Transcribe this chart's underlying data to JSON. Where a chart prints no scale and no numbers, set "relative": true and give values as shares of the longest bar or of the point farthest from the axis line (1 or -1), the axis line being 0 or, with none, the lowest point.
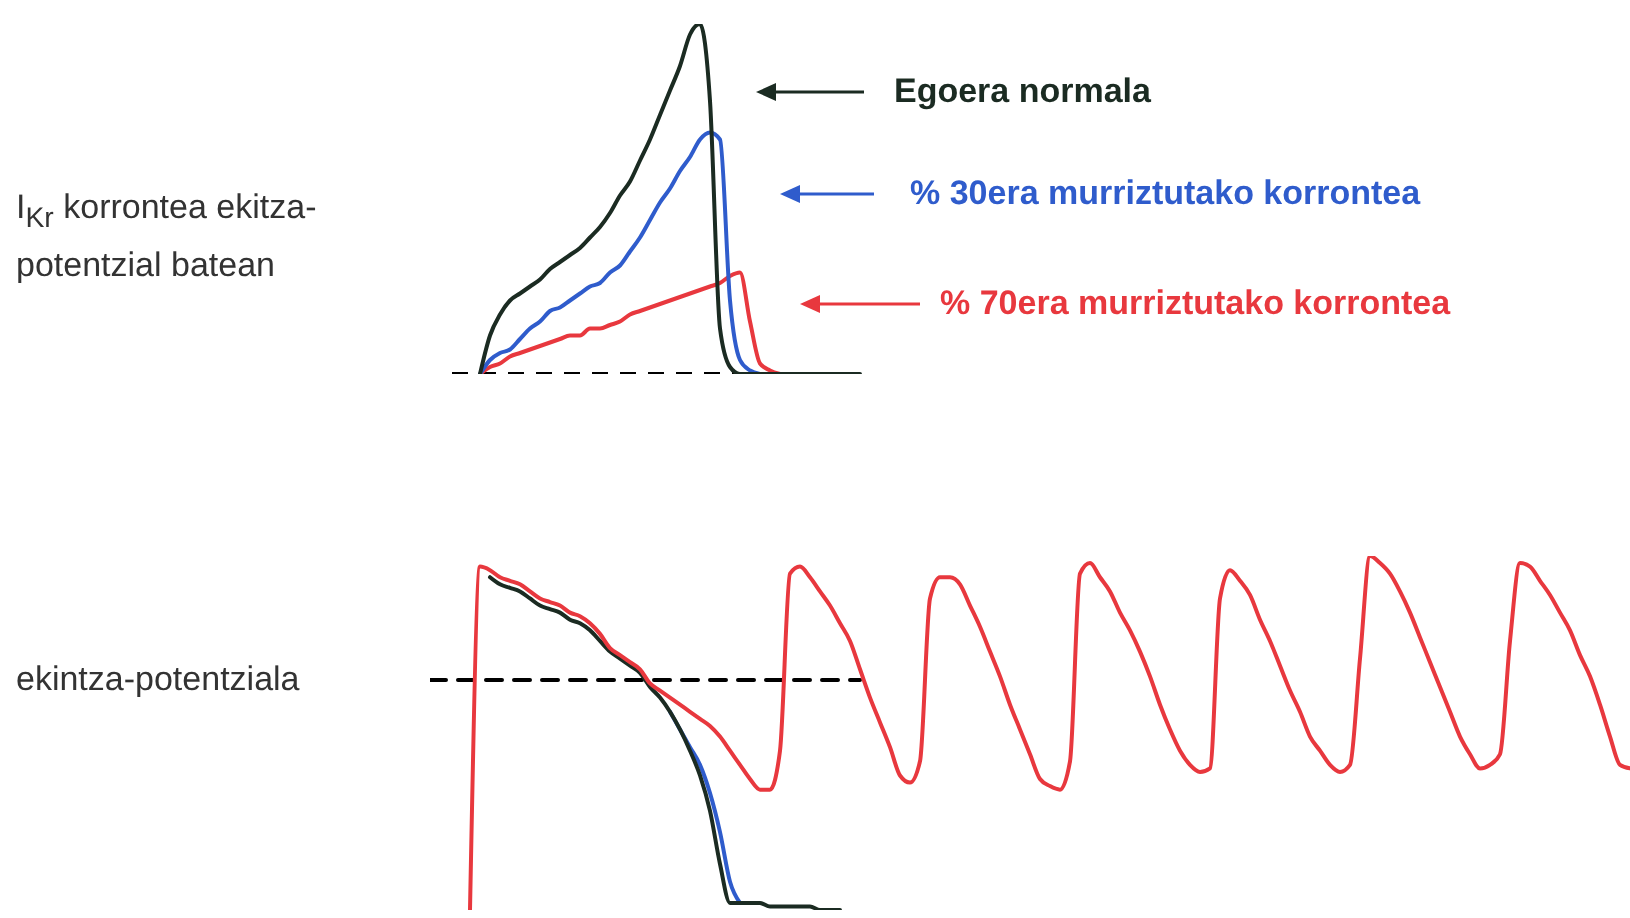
{
  "chart_data": [
    {
      "type": "line",
      "relative": true,
      "tick_labels": false,
      "legend": "right",
      "ylabel": "I$_{Kr}$ korrontea ekitza-potentzial batean",
      "categories": [
        null,
        null,
        null,
        null,
        null,
        null,
        null,
        null,
        null,
        null,
        null,
        null,
        null,
        null,
        null,
        null,
        null,
        null,
        null,
        null,
        null,
        null,
        null,
        null,
        null,
        null,
        null,
        null,
        null,
        null,
        null,
        null,
        null,
        null,
        null,
        null,
        null,
        null,
        null,
        null,
        null,
        null
      ],
      "ref_lines": [
        {
          "axis": "y",
          "value": 0,
          "color": "#000000",
          "line_style": "dashed"
        }
      ],
      "series": [
        {
          "name": "% 70era murriztutako korrontea",
          "color": "#e8383e",
          "values": [
            null,
            null,
            null,
            0,
            0.02,
            0.03,
            0.05,
            0.06,
            0.07,
            0.08,
            0.09,
            0.1,
            0.11,
            0.11,
            0.13,
            0.13,
            0.14,
            0.15,
            0.17,
            0.18,
            0.19,
            0.2,
            0.21,
            0.22,
            0.23,
            0.24,
            0.25,
            0.26,
            0.28,
            0.29,
            0.15,
            0.03,
            0.01,
            0,
            null,
            null,
            null,
            null,
            null,
            null,
            null,
            null
          ]
        },
        {
          "name": "% 30era murriztutako korrontea",
          "color": "#2f5ccc",
          "values": [
            null,
            null,
            null,
            0,
            0.04,
            0.06,
            0.07,
            0.1,
            0.13,
            0.15,
            0.18,
            0.19,
            0.21,
            0.23,
            0.25,
            0.26,
            0.29,
            0.31,
            0.35,
            0.39,
            0.44,
            0.49,
            0.53,
            0.58,
            0.62,
            0.67,
            0.69,
            0.67,
            0.21,
            0.04,
            0.01,
            0,
            null,
            null,
            null,
            null,
            null,
            null,
            null,
            null,
            null,
            null
          ]
        },
        {
          "name": "Egoera normala",
          "color": "#1b2b22",
          "values": [
            null,
            null,
            null,
            0,
            0.11,
            0.17,
            0.21,
            0.23,
            0.25,
            0.27,
            0.3,
            0.32,
            0.34,
            0.36,
            0.39,
            0.42,
            0.46,
            0.51,
            0.55,
            0.61,
            0.67,
            0.74,
            0.81,
            0.88,
            0.97,
            1.0,
            0.78,
            0.13,
            0.02,
            0,
            0,
            0,
            0,
            0,
            0,
            0,
            0,
            0,
            0,
            0,
            0,
            0
          ]
        }
      ]
    },
    {
      "type": "line",
      "relative": true,
      "tick_labels": false,
      "ylabel": "ekintza-potentziala",
      "categories": [
        null,
        null,
        null,
        null,
        null,
        null,
        null,
        null,
        null,
        null,
        null,
        null,
        null,
        null,
        null,
        null,
        null,
        null,
        null,
        null,
        null,
        null,
        null,
        null,
        null,
        null,
        null,
        null,
        null,
        null,
        null,
        null,
        null,
        null,
        null,
        null,
        null,
        null,
        null,
        null,
        null,
        null,
        null,
        null,
        null,
        null,
        null,
        null,
        null,
        null,
        null,
        null,
        null,
        null,
        null,
        null,
        null,
        null,
        null,
        null,
        null,
        null,
        null,
        null,
        null,
        null,
        null,
        null,
        null,
        null,
        null,
        null,
        null,
        null,
        null,
        null,
        null,
        null,
        null,
        null,
        null,
        null,
        null,
        null,
        null,
        null,
        null,
        null,
        null,
        null,
        null,
        null,
        null,
        null,
        null,
        null,
        null,
        null,
        null,
        null,
        null,
        null,
        null,
        null,
        null,
        null,
        null,
        null,
        null,
        null,
        null,
        null,
        null,
        null,
        null,
        null,
        null,
        null,
        null,
        null,
        null
      ],
      "series": [
        {
          "type": "line",
          "line_style": "dashed",
          "color": "#000000",
          "values": [
            0.65,
            0.65,
            0.65,
            0.65,
            0.65,
            0.65,
            0.65,
            0.65,
            0.65,
            0.65,
            0.65,
            0.65,
            0.65,
            0.65,
            0.65,
            0.65,
            0.65,
            0.65,
            0.65,
            0.65,
            0.65,
            0.65,
            0.65,
            0.65,
            0.65,
            0.65,
            0.65,
            0.65,
            0.65,
            0.65,
            0.65,
            0.65,
            0.65,
            0.65,
            0.65,
            0.65,
            0.65,
            0.65,
            0.65,
            0.65,
            0.65,
            0.65,
            0.65,
            0.65,
            null,
            null,
            null,
            null,
            null,
            null,
            null,
            null,
            null,
            null,
            null,
            null,
            null,
            null,
            null,
            null,
            null,
            null,
            null,
            null,
            null,
            null,
            null,
            null,
            null,
            null,
            null,
            null,
            null,
            null,
            null,
            null,
            null,
            null,
            null,
            null,
            null,
            null,
            null,
            null,
            null,
            null,
            null,
            null,
            null,
            null,
            null,
            null,
            null,
            null,
            null,
            null,
            null,
            null,
            null,
            null,
            null,
            null,
            null,
            null,
            null,
            null,
            null,
            null,
            null,
            null,
            null,
            null,
            null,
            null,
            null,
            null,
            null,
            null,
            null,
            null,
            null
          ]
        },
        {
          "color": "#2f5ccc",
          "values": [
            null,
            null,
            null,
            null,
            null,
            null,
            null,
            null,
            null,
            null,
            null,
            null,
            null,
            null,
            null,
            null,
            null,
            null,
            null,
            null,
            null,
            null,
            null,
            null,
            0.56,
            0.51,
            0.46,
            0.41,
            0.33,
            0.22,
            0.08,
            0.02,
            null,
            null,
            null,
            null,
            null,
            null,
            null,
            null,
            null,
            null,
            null,
            null,
            null,
            null,
            null,
            null,
            null,
            null,
            null,
            null,
            null,
            null,
            null,
            null,
            null,
            null,
            null,
            null,
            null,
            null,
            null,
            null,
            null,
            null,
            null,
            null,
            null,
            null,
            null,
            null,
            null,
            null,
            null,
            null,
            null,
            null,
            null,
            null,
            null,
            null,
            null,
            null,
            null,
            null,
            null,
            null,
            null,
            null,
            null,
            null,
            null,
            null,
            null,
            null,
            null,
            null,
            null,
            null,
            null,
            null,
            null,
            null,
            null,
            null,
            null,
            null,
            null,
            null,
            null,
            null,
            null,
            null,
            null,
            null,
            null,
            null,
            null,
            null,
            null
          ]
        },
        {
          "color": "#1b2b22",
          "values": [
            null,
            null,
            null,
            null,
            null,
            null,
            0.94,
            0.92,
            0.91,
            0.9,
            0.88,
            0.86,
            0.85,
            0.84,
            0.82,
            0.81,
            0.79,
            0.76,
            0.73,
            0.71,
            0.69,
            0.67,
            0.63,
            0.6,
            0.56,
            0.51,
            0.45,
            0.38,
            0.28,
            0.13,
            0.02,
            0.02,
            0.02,
            0.02,
            0.01,
            0.01,
            0.01,
            0.01,
            0.01,
            0,
            0,
            0,
            null,
            null,
            null,
            null,
            null,
            null,
            null,
            null,
            null,
            null,
            null,
            null,
            null,
            null,
            null,
            null,
            null,
            null,
            null,
            null,
            null,
            null,
            null,
            null,
            null,
            null,
            null,
            null,
            null,
            null,
            null,
            null,
            null,
            null,
            null,
            null,
            null,
            null,
            null,
            null,
            null,
            null,
            null,
            null,
            null,
            null,
            null,
            null,
            null,
            null,
            null,
            null,
            null,
            null,
            null,
            null,
            null,
            null,
            null,
            null,
            null,
            null,
            null,
            null,
            null,
            null,
            null,
            null,
            null,
            null,
            null,
            null,
            null,
            null,
            null,
            null,
            null,
            null,
            null
          ]
        },
        {
          "color": "#e8383e",
          "values": [
            null,
            null,
            null,
            null,
            0,
            0.97,
            0.96,
            0.94,
            0.93,
            0.92,
            0.9,
            0.88,
            0.87,
            0.86,
            0.84,
            0.83,
            0.81,
            0.78,
            0.74,
            0.72,
            0.7,
            0.68,
            0.64,
            0.62,
            0.6,
            0.58,
            0.56,
            0.54,
            0.52,
            0.49,
            0.45,
            0.41,
            0.37,
            0.34,
            0.34,
            0.45,
            0.95,
            0.97,
            0.94,
            0.9,
            0.86,
            0.81,
            0.76,
            0.68,
            0.6,
            0.53,
            0.46,
            0.38,
            0.36,
            0.42,
            0.88,
            0.94,
            0.94,
            0.92,
            0.86,
            0.8,
            0.73,
            0.66,
            0.58,
            0.51,
            0.44,
            0.37,
            0.35,
            0.34,
            0.42,
            0.95,
            0.98,
            0.94,
            0.9,
            0.84,
            0.79,
            0.73,
            0.66,
            0.58,
            0.51,
            0.45,
            0.41,
            0.39,
            0.4,
            0.88,
            0.96,
            0.93,
            0.89,
            0.82,
            0.76,
            0.69,
            0.62,
            0.56,
            0.49,
            0.45,
            0.41,
            0.39,
            0.41,
            0.71,
            1.0,
            0.98,
            0.95,
            0.9,
            0.84,
            0.77,
            0.7,
            0.63,
            0.56,
            0.49,
            0.44,
            0.4,
            0.41,
            0.44,
            0.76,
            0.98,
            0.97,
            0.93,
            0.89,
            0.84,
            0.79,
            0.72,
            0.66,
            0.58,
            0.49,
            0.41,
            0.4
          ]
        }
      ]
    }
  ]
}
